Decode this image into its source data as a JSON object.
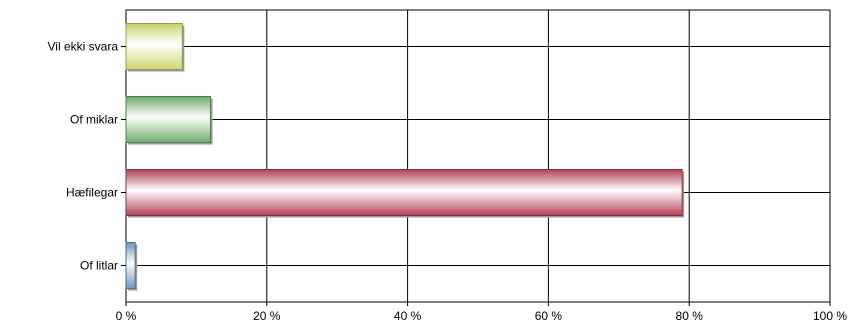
{
  "chart_data": {
    "type": "bar",
    "orientation": "horizontal",
    "categories": [
      "Vil ekki svara",
      "Of miklar",
      "Hæfilegar",
      "Of litlar"
    ],
    "values": [
      8,
      12,
      79,
      1.3
    ],
    "bar_colors": [
      "#e6ef7a",
      "#7fbf7a",
      "#c84a62",
      "#7aa7d6"
    ],
    "xlim": [
      0,
      100
    ],
    "xticks": [
      0,
      20,
      40,
      60,
      80,
      100
    ],
    "xtick_labels": [
      "0 %",
      "20 %",
      "40 %",
      "60 %",
      "80 %",
      "100 %"
    ],
    "grid": true,
    "legend": "none",
    "title": "",
    "xlabel": "",
    "ylabel": ""
  }
}
